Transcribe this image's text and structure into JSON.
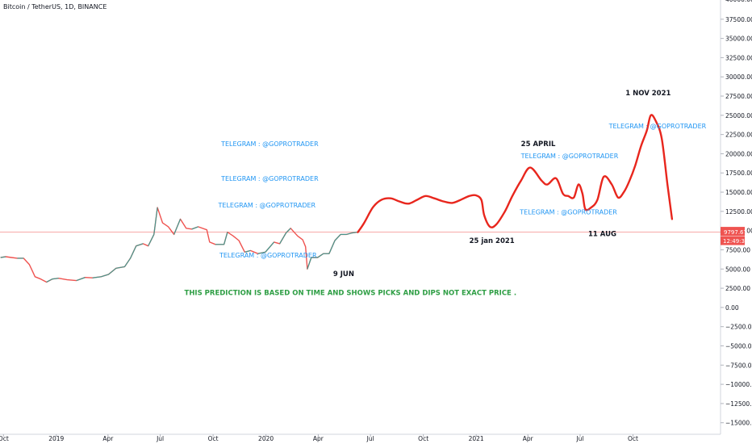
{
  "chart": {
    "symbol": "Bitcoin / TetherUS, 1D, BINANCE"
  },
  "colors": {
    "up": "#26a69a",
    "down": "#ef5350",
    "projection": "#e8261d",
    "telegram": "#2196f3",
    "note": "#2e9e44",
    "axis_text": "#131722",
    "price_line": "#ef5350",
    "price_label_bg": "#ef5350"
  },
  "price_label": {
    "price": "9797.67",
    "countdown": "12:49:30"
  },
  "chart_data": {
    "type": "line",
    "yaxis": {
      "ticks": [
        37500,
        35000,
        32500,
        30000,
        27500,
        25000,
        22500,
        20000,
        17500,
        15000,
        12500,
        10000,
        7500,
        5000,
        2500,
        0,
        -2500,
        -5000,
        -7500,
        -10000,
        -12500,
        -15000
      ],
      "tick_labels": [
        "37500.00",
        "35000.00",
        "32500.00",
        "30000.00",
        "27500.00",
        "25000.00",
        "22500.00",
        "20000.00",
        "17500.00",
        "15000.00",
        "12500.00",
        "10000.00",
        "7500.00",
        "5000.00",
        "2500.00",
        "0.00",
        "−2500.00",
        "−5000.00",
        "−7500.00",
        "−10000.00",
        "−12500.00",
        "−15000.00"
      ],
      "partial_top_label": "40000.00",
      "range": [
        -16500,
        40000
      ]
    },
    "xaxis": {
      "range": [
        "2018-09-25",
        "2022-03-01"
      ],
      "ticks": [
        {
          "date": "2018-10-01",
          "label": "Oct"
        },
        {
          "date": "2019-01-01",
          "label": "2019"
        },
        {
          "date": "2019-04-01",
          "label": "Apr"
        },
        {
          "date": "2019-07-01",
          "label": "Jul"
        },
        {
          "date": "2019-10-01",
          "label": "Oct"
        },
        {
          "date": "2020-01-01",
          "label": "2020"
        },
        {
          "date": "2020-04-01",
          "label": "Apr"
        },
        {
          "date": "2020-07-01",
          "label": "Jul"
        },
        {
          "date": "2020-10-01",
          "label": "Oct"
        },
        {
          "date": "2021-01-01",
          "label": "2021"
        },
        {
          "date": "2021-04-01",
          "label": "Apr"
        },
        {
          "date": "2021-07-01",
          "label": "Jul"
        },
        {
          "date": "2021-10-01",
          "label": "Oct"
        }
      ]
    },
    "current_price": 9797.67,
    "series": [
      {
        "type": "line",
        "x": [
          "2018-09-26",
          "2018-10-05",
          "2018-10-15",
          "2018-10-25",
          "2018-11-05",
          "2018-11-15",
          "2018-11-20",
          "2018-11-25",
          "2018-12-05",
          "2018-12-15",
          "2018-12-25",
          "2019-01-05",
          "2019-01-20",
          "2019-02-05",
          "2019-02-20",
          "2019-03-05",
          "2019-03-20",
          "2019-04-02",
          "2019-04-15",
          "2019-04-30",
          "2019-05-10",
          "2019-05-20",
          "2019-06-01",
          "2019-06-10",
          "2019-06-20",
          "2019-06-26",
          "2019-07-05",
          "2019-07-15",
          "2019-07-25",
          "2019-08-05",
          "2019-08-15",
          "2019-08-25",
          "2019-09-05",
          "2019-09-20",
          "2019-09-25",
          "2019-10-05",
          "2019-10-20",
          "2019-10-26",
          "2019-11-05",
          "2019-11-15",
          "2019-11-25",
          "2019-12-05",
          "2019-12-18",
          "2019-12-31",
          "2020-01-15",
          "2020-01-25",
          "2020-02-05",
          "2020-02-13",
          "2020-02-25",
          "2020-03-05",
          "2020-03-10",
          "2020-03-13",
          "2020-03-20",
          "2020-03-31",
          "2020-04-10",
          "2020-04-20",
          "2020-04-30",
          "2020-05-10",
          "2020-05-20",
          "2020-05-30",
          "2020-06-09"
        ],
        "values": [
          6500,
          6600,
          6500,
          6400,
          6400,
          5600,
          4800,
          4000,
          3700,
          3300,
          3700,
          3800,
          3600,
          3500,
          3900,
          3850,
          4000,
          4300,
          5100,
          5300,
          6400,
          8000,
          8300,
          8000,
          9500,
          13000,
          11000,
          10500,
          9500,
          11500,
          10300,
          10200,
          10500,
          10100,
          8500,
          8200,
          8200,
          9800,
          9300,
          8700,
          7200,
          7400,
          7000,
          7200,
          8500,
          8300,
          9700,
          10300,
          9300,
          8800,
          7900,
          5000,
          6500,
          6500,
          7000,
          7000,
          8700,
          9500,
          9500,
          9700,
          9797.67
        ]
      },
      {
        "type": "line",
        "x": [
          "2020-06-09",
          "2020-06-20",
          "2020-07-05",
          "2020-07-20",
          "2020-08-05",
          "2020-08-20",
          "2020-09-05",
          "2020-09-20",
          "2020-10-05",
          "2020-10-20",
          "2020-11-05",
          "2020-11-20",
          "2020-12-05",
          "2020-12-20",
          "2020-12-31",
          "2021-01-10",
          "2021-01-15",
          "2021-01-25",
          "2021-02-05",
          "2021-02-20",
          "2021-03-05",
          "2021-03-20",
          "2021-04-05",
          "2021-04-25",
          "2021-05-05",
          "2021-05-20",
          "2021-06-01",
          "2021-06-10",
          "2021-06-20",
          "2021-06-28",
          "2021-07-05",
          "2021-07-10",
          "2021-07-20",
          "2021-07-31",
          "2021-08-11",
          "2021-08-25",
          "2021-09-05",
          "2021-09-15",
          "2021-09-25",
          "2021-10-05",
          "2021-10-15",
          "2021-10-25",
          "2021-11-01",
          "2021-11-10",
          "2021-11-20",
          "2021-11-30",
          "2021-12-08"
        ],
        "values": [
          9797.67,
          11000,
          13000,
          14000,
          14200,
          13800,
          13500,
          14000,
          14500,
          14200,
          13800,
          13600,
          14000,
          14500,
          14600,
          14000,
          12000,
          10500,
          10800,
          12500,
          14500,
          16500,
          18200,
          16500,
          16000,
          16800,
          14800,
          14500,
          14300,
          16000,
          14800,
          12800,
          13000,
          14000,
          17000,
          16000,
          14300,
          15000,
          16500,
          18500,
          21000,
          23000,
          25000,
          24200,
          22000,
          16000,
          11500
        ]
      }
    ],
    "annotations": [
      {
        "text": "TELEGRAM : @GOPROTRADER",
        "x": "2019-10-15",
        "y": 21000,
        "color": "telegram",
        "bold": false
      },
      {
        "text": "TELEGRAM : @GOPROTRADER",
        "x": "2019-10-15",
        "y": 16500,
        "color": "telegram",
        "bold": false
      },
      {
        "text": "TELEGRAM : @GOPROTRADER",
        "x": "2019-10-10",
        "y": 13000,
        "color": "telegram",
        "bold": false
      },
      {
        "text": "TELEGRAM : @GOPROTRADER",
        "x": "2019-10-12",
        "y": 6500,
        "color": "telegram",
        "bold": false
      },
      {
        "text": "TELEGRAM : @GOPROTRADER",
        "x": "2021-03-20",
        "y": 19400,
        "color": "telegram",
        "bold": false
      },
      {
        "text": "TELEGRAM : @GOPROTRADER",
        "x": "2021-03-18",
        "y": 12100,
        "color": "telegram",
        "bold": false
      },
      {
        "text": "TELEGRAM : @GOPROTRADER",
        "x": "2021-08-20",
        "y": 23300,
        "color": "telegram",
        "bold": false
      },
      {
        "text": "25 APRIL",
        "x": "2021-03-20",
        "y": 21000,
        "color": "axis_text",
        "bold": true
      },
      {
        "text": "1 NOV 2021",
        "x": "2021-09-18",
        "y": 27600,
        "color": "axis_text",
        "bold": true
      },
      {
        "text": "25 jan 2021",
        "x": "2020-12-20",
        "y": 8400,
        "color": "axis_text",
        "bold": true
      },
      {
        "text": "11 AUG",
        "x": "2021-07-15",
        "y": 9300,
        "color": "axis_text",
        "bold": true
      },
      {
        "text": "9 JUN",
        "x": "2020-04-27",
        "y": 4100,
        "color": "axis_text",
        "bold": true
      },
      {
        "text": "THIS PREDICTION IS BASED ON TIME AND SHOWS PICKS AND DIPS NOT EXACT PRICE .",
        "x": "2019-08-12",
        "y": 1600,
        "color": "note",
        "bold": true
      }
    ]
  }
}
